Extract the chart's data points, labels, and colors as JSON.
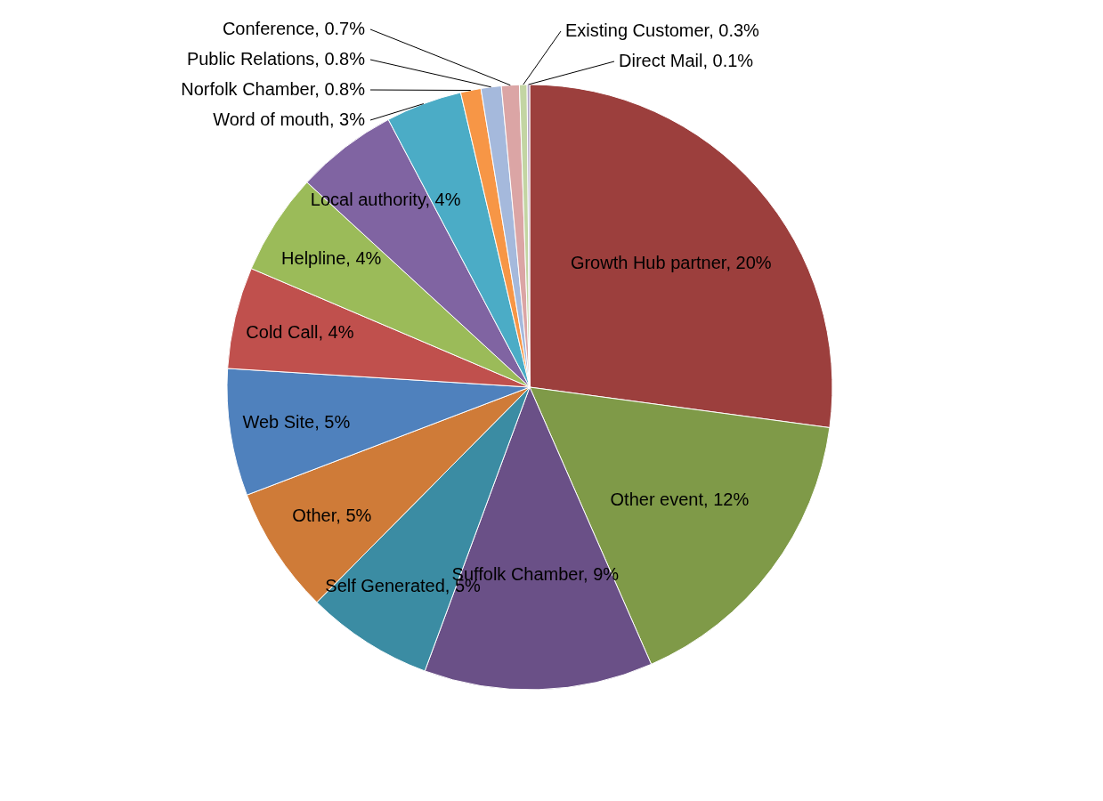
{
  "chart_data": {
    "type": "pie",
    "categories": [
      "Growth Hub partner",
      "Other event",
      "Suffolk Chamber",
      "Self Generated",
      "Other",
      "Web Site",
      "Cold Call",
      "Helpline",
      "Local authority",
      "Word of mouth",
      "Norfolk Chamber",
      "Public Relations",
      "Conference",
      "Existing Customer",
      "Direct Mail"
    ],
    "values": [
      20,
      12,
      9,
      5,
      5,
      5,
      4,
      4,
      4,
      3,
      0.8,
      0.8,
      0.7,
      0.3,
      0.1
    ],
    "value_labels": [
      "20%",
      "12%",
      "9%",
      "5%",
      "5%",
      "5%",
      "4%",
      "4%",
      "4%",
      "3%",
      "0.8%",
      "0.8%",
      "0.7%",
      "0.3%",
      "0.1%"
    ],
    "colors": [
      "#9c3f3d",
      "#7f9a48",
      "#6a5087",
      "#3b8ca3",
      "#cf7b38",
      "#4f81bd",
      "#c0504d",
      "#9bbb59",
      "#8064a2",
      "#4bacc6",
      "#f79646",
      "#a5b9dc",
      "#dba5a5",
      "#c3d5a3",
      "#b3a5c8"
    ]
  }
}
